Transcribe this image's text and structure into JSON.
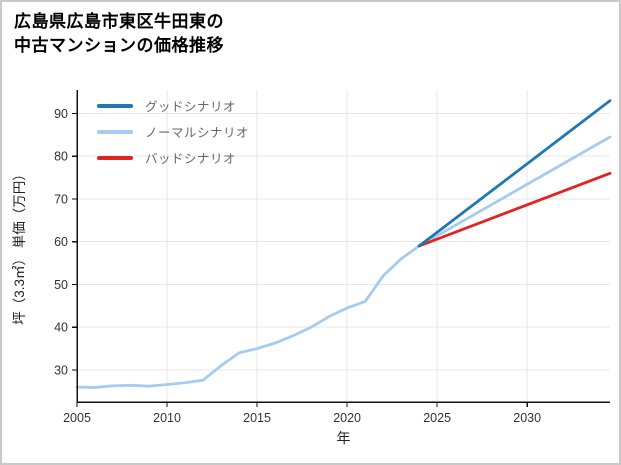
{
  "title": {
    "line1": "広島県広島市東区牛田東の",
    "line2": "中古マンションの価格推移"
  },
  "chart_data": {
    "type": "line",
    "title": "広島県広島市東区牛田東の中古マンションの価格推移",
    "xlabel": "年",
    "ylabel": "坪（3.3㎡） 単価（万円）",
    "xlim": [
      2005,
      2034.6
    ],
    "ylim": [
      22.5,
      95.5
    ],
    "x_ticks": [
      2005,
      2010,
      2015,
      2020,
      2025,
      2030
    ],
    "y_ticks": [
      30,
      40,
      50,
      60,
      70,
      80,
      90
    ],
    "grid": true,
    "legend_position": "upper-left",
    "series": [
      {
        "id": "good-scenario",
        "name": "グッドシナリオ",
        "color": "#1f77b4",
        "x": [
          2024,
          2034.6
        ],
        "y": [
          59,
          93
        ]
      },
      {
        "id": "normal-scenario",
        "name": "ノーマルシナリオ",
        "color": "#a6cbf0",
        "x": [
          2005,
          2006,
          2007,
          2008,
          2009,
          2010,
          2011,
          2012,
          2013,
          2014,
          2015,
          2016,
          2017,
          2018,
          2019,
          2020,
          2021,
          2022,
          2023,
          2024,
          2034.6
        ],
        "y": [
          26,
          25.9,
          26.3,
          26.4,
          26.2,
          26.6,
          27,
          27.6,
          31,
          34,
          35,
          36.3,
          38,
          40,
          42.5,
          44.5,
          46,
          52,
          56,
          59,
          84.5
        ]
      },
      {
        "id": "bad-scenario",
        "name": "バッドシナリオ",
        "color": "#e32222",
        "x": [
          2024,
          2034.6
        ],
        "y": [
          59,
          76
        ]
      }
    ]
  }
}
